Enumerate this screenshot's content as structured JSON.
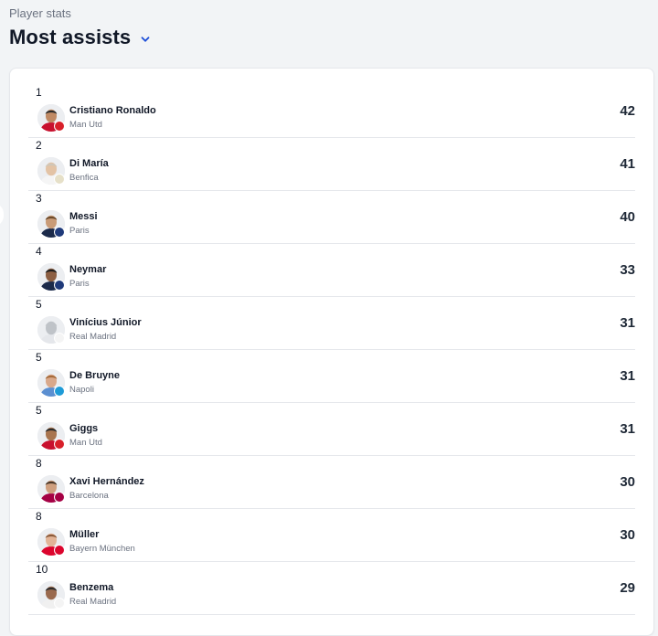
{
  "header": {
    "overline": "Player stats",
    "title": "Most assists",
    "dropdown_icon": "chevron-down-icon",
    "accent": "#1d4ed8"
  },
  "players": [
    {
      "rank": "1",
      "name": "Cristiano Ronaldo",
      "team": "Man Utd",
      "value": "42",
      "skin": "#c08a64",
      "hair": "#2b2b2b",
      "shirt": "#c8102e",
      "badge": "#d8202a"
    },
    {
      "rank": "2",
      "name": "Di María",
      "team": "Benfica",
      "value": "41",
      "skin": "#e3c3a5",
      "hair": "#cfc6b8",
      "shirt": "#f5f5f5",
      "badge": "#e6e0c8"
    },
    {
      "rank": "3",
      "name": "Messi",
      "team": "Paris",
      "value": "40",
      "skin": "#c99b77",
      "hair": "#6b4a2b",
      "shirt": "#1b2a4a",
      "badge": "#1f3a7a"
    },
    {
      "rank": "4",
      "name": "Neymar",
      "team": "Paris",
      "value": "33",
      "skin": "#8c5f43",
      "hair": "#1c1c1c",
      "shirt": "#1b2a4a",
      "badge": "#1f3a7a"
    },
    {
      "rank": "5",
      "name": "Vinícius Júnior",
      "team": "Real Madrid",
      "value": "31",
      "skin": "#bfc3c8",
      "hair": "#bfc3c8",
      "shirt": "#e5e7eb",
      "badge": "#f4f4f4"
    },
    {
      "rank": "5",
      "name": "De Bruyne",
      "team": "Napoli",
      "value": "31",
      "skin": "#d9a88a",
      "hair": "#a56a3a",
      "shirt": "#5b8fd1",
      "badge": "#1e9bd7"
    },
    {
      "rank": "5",
      "name": "Giggs",
      "team": "Man Utd",
      "value": "31",
      "skin": "#a9754f",
      "hair": "#2b2b2b",
      "shirt": "#c8102e",
      "badge": "#d8202a"
    },
    {
      "rank": "8",
      "name": "Xavi Hernández",
      "team": "Barcelona",
      "value": "30",
      "skin": "#cf9f7e",
      "hair": "#4a3728",
      "shirt": "#a50044",
      "badge": "#a50044"
    },
    {
      "rank": "8",
      "name": "Müller",
      "team": "Bayern München",
      "value": "30",
      "skin": "#e2b497",
      "hair": "#8a5a3a",
      "shirt": "#dc052d",
      "badge": "#dc052d"
    },
    {
      "rank": "10",
      "name": "Benzema",
      "team": "Real Madrid",
      "value": "29",
      "skin": "#9a6a4e",
      "hair": "#2b2b2b",
      "shirt": "#f0f0f0",
      "badge": "#f4f4f4"
    }
  ]
}
